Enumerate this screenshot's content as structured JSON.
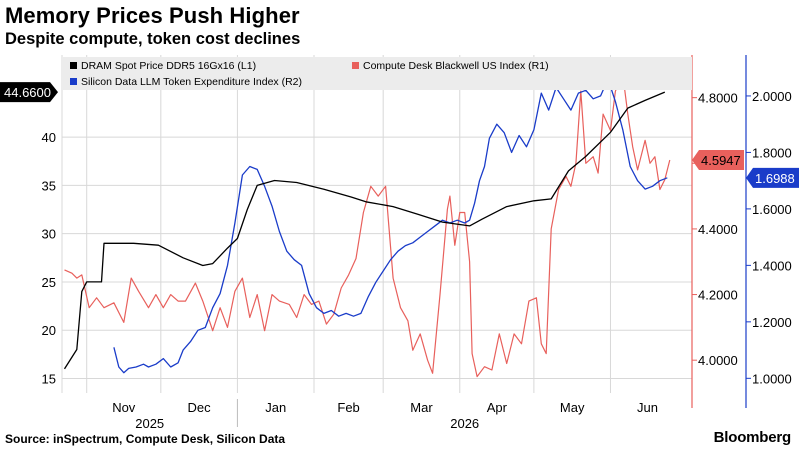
{
  "header": {
    "title": "Memory Prices Push Higher",
    "subtitle": "Despite compute, token cost declines"
  },
  "footer": {
    "source": "Source: inSpectrum, Compute Desk, Silicon Data",
    "brand": "Bloomberg"
  },
  "colors": {
    "dram": "#000000",
    "compute": "#e8605c",
    "llm": "#1a3cc9",
    "grid": "#d8d8d8",
    "legend_bg": "#ececec"
  },
  "chart_data": {
    "type": "line",
    "x_month_labels": [
      "Nov",
      "Dec",
      "Jan",
      "Feb",
      "Mar",
      "Apr",
      "May",
      "Jun"
    ],
    "x_year_labels": [
      "2025",
      "2026"
    ],
    "axes": {
      "left": {
        "ticks": [
          "15",
          "20",
          "25",
          "30",
          "35",
          "40"
        ],
        "ylim": [
          13.5,
          48.5
        ],
        "grid": true
      },
      "right1": {
        "ticks": [
          "4.0000",
          "4.2000",
          "4.4000",
          "4.6000",
          "4.8000"
        ],
        "ylim": [
          3.9,
          4.93
        ]
      },
      "right2": {
        "ticks": [
          "1.0000",
          "1.2000",
          "1.4000",
          "1.6000",
          "1.8000",
          "2.0000"
        ],
        "ylim": [
          0.948,
          2.145
        ]
      }
    },
    "series": [
      {
        "name": "DRAM Spot Price DDR5 16Gx16 (L1)",
        "axis": "left",
        "last_value_label": "44.6600",
        "points": [
          [
            "2025-10-23",
            16.0
          ],
          [
            "2025-10-28",
            18.0
          ],
          [
            "2025-10-30",
            24.0
          ],
          [
            "2025-11-01",
            25.0
          ],
          [
            "2025-11-07",
            25.0
          ],
          [
            "2025-11-08",
            29.0
          ],
          [
            "2025-11-20",
            29.0
          ],
          [
            "2025-11-30",
            28.8
          ],
          [
            "2025-12-10",
            27.5
          ],
          [
            "2025-12-18",
            26.7
          ],
          [
            "2025-12-22",
            26.9
          ],
          [
            "2025-12-28",
            28.5
          ],
          [
            "2026-01-01",
            29.5
          ],
          [
            "2026-01-05",
            32.5
          ],
          [
            "2026-01-09",
            35.0
          ],
          [
            "2026-01-16",
            35.5
          ],
          [
            "2026-01-25",
            35.3
          ],
          [
            "2026-02-05",
            34.6
          ],
          [
            "2026-02-16",
            33.8
          ],
          [
            "2026-02-22",
            33.3
          ],
          [
            "2026-03-05",
            32.8
          ],
          [
            "2026-03-15",
            32.0
          ],
          [
            "2026-03-25",
            31.2
          ],
          [
            "2026-04-05",
            30.8
          ],
          [
            "2026-04-10",
            31.5
          ],
          [
            "2026-04-20",
            32.8
          ],
          [
            "2026-05-01",
            33.4
          ],
          [
            "2026-05-08",
            33.6
          ],
          [
            "2026-05-15",
            36.5
          ],
          [
            "2026-05-22",
            38.0
          ],
          [
            "2026-06-01",
            40.5
          ],
          [
            "2026-06-08",
            43.0
          ],
          [
            "2026-06-15",
            43.8
          ],
          [
            "2026-06-23",
            44.66
          ]
        ]
      },
      {
        "name": "Compute Desk Blackwell US Index (R1)",
        "axis": "right1",
        "last_value_label": "4.5947",
        "points": [
          [
            "2025-10-23",
            4.275
          ],
          [
            "2025-10-26",
            4.265
          ],
          [
            "2025-10-28",
            4.25
          ],
          [
            "2025-10-30",
            4.26
          ],
          [
            "2025-11-02",
            4.16
          ],
          [
            "2025-11-05",
            4.19
          ],
          [
            "2025-11-08",
            4.16
          ],
          [
            "2025-11-12",
            4.175
          ],
          [
            "2025-11-16",
            4.115
          ],
          [
            "2025-11-19",
            4.25
          ],
          [
            "2025-11-22",
            4.21
          ],
          [
            "2025-11-26",
            4.16
          ],
          [
            "2025-11-29",
            4.2
          ],
          [
            "2025-12-02",
            4.16
          ],
          [
            "2025-12-05",
            4.2
          ],
          [
            "2025-12-08",
            4.18
          ],
          [
            "2025-12-11",
            4.18
          ],
          [
            "2025-12-15",
            4.235
          ],
          [
            "2025-12-18",
            4.18
          ],
          [
            "2025-12-22",
            4.09
          ],
          [
            "2025-12-25",
            4.16
          ],
          [
            "2025-12-28",
            4.1
          ],
          [
            "2025-12-31",
            4.21
          ],
          [
            "2026-01-03",
            4.25
          ],
          [
            "2026-01-06",
            4.13
          ],
          [
            "2026-01-09",
            4.2
          ],
          [
            "2026-01-12",
            4.09
          ],
          [
            "2026-01-15",
            4.2
          ],
          [
            "2026-01-18",
            4.18
          ],
          [
            "2026-01-22",
            4.17
          ],
          [
            "2026-01-25",
            4.13
          ],
          [
            "2026-01-28",
            4.2
          ],
          [
            "2026-01-31",
            4.17
          ],
          [
            "2026-02-03",
            4.18
          ],
          [
            "2026-02-06",
            4.11
          ],
          [
            "2026-02-09",
            4.14
          ],
          [
            "2026-02-12",
            4.22
          ],
          [
            "2026-02-15",
            4.26
          ],
          [
            "2026-02-18",
            4.31
          ],
          [
            "2026-02-21",
            4.45
          ],
          [
            "2026-02-24",
            4.53
          ],
          [
            "2026-02-27",
            4.5
          ],
          [
            "2026-03-02",
            4.53
          ],
          [
            "2026-03-05",
            4.25
          ],
          [
            "2026-03-08",
            4.16
          ],
          [
            "2026-03-11",
            4.12
          ],
          [
            "2026-03-13",
            4.03
          ],
          [
            "2026-03-16",
            4.08
          ],
          [
            "2026-03-19",
            4.0
          ],
          [
            "2026-03-21",
            3.96
          ],
          [
            "2026-03-24",
            4.2
          ],
          [
            "2026-03-27",
            4.46
          ],
          [
            "2026-03-28",
            4.5
          ],
          [
            "2026-03-30",
            4.35
          ],
          [
            "2026-04-01",
            4.45
          ],
          [
            "2026-04-03",
            4.45
          ],
          [
            "2026-04-05",
            4.3
          ],
          [
            "2026-04-06",
            4.02
          ],
          [
            "2026-04-08",
            3.95
          ],
          [
            "2026-04-11",
            3.98
          ],
          [
            "2026-04-14",
            3.97
          ],
          [
            "2026-04-17",
            4.08
          ],
          [
            "2026-04-20",
            3.99
          ],
          [
            "2026-04-23",
            4.08
          ],
          [
            "2026-04-26",
            4.05
          ],
          [
            "2026-04-29",
            4.18
          ],
          [
            "2026-05-02",
            4.19
          ],
          [
            "2026-05-04",
            4.05
          ],
          [
            "2026-05-06",
            4.02
          ],
          [
            "2026-05-08",
            4.4
          ],
          [
            "2026-05-11",
            4.52
          ],
          [
            "2026-05-14",
            4.56
          ],
          [
            "2026-05-16",
            4.53
          ],
          [
            "2026-05-18",
            4.6
          ],
          [
            "2026-05-20",
            4.82
          ],
          [
            "2026-05-22",
            4.6
          ],
          [
            "2026-05-25",
            4.62
          ],
          [
            "2026-05-27",
            4.57
          ],
          [
            "2026-05-29",
            4.75
          ],
          [
            "2026-06-01",
            4.7
          ],
          [
            "2026-06-03",
            4.82
          ],
          [
            "2026-06-06",
            4.87
          ],
          [
            "2026-06-08",
            4.75
          ],
          [
            "2026-06-10",
            4.65
          ],
          [
            "2026-06-12",
            4.58
          ],
          [
            "2026-06-15",
            4.67
          ],
          [
            "2026-06-17",
            4.6
          ],
          [
            "2026-06-19",
            4.62
          ],
          [
            "2026-06-21",
            4.52
          ],
          [
            "2026-06-23",
            4.55
          ],
          [
            "2026-06-25",
            4.61
          ]
        ]
      },
      {
        "name": "Silicon Data LLM Token Expenditure Index (R2)",
        "axis": "right2",
        "last_value_label": "1.6988",
        "points": [
          [
            "2025-11-12",
            1.11
          ],
          [
            "2025-11-14",
            1.04
          ],
          [
            "2025-11-16",
            1.02
          ],
          [
            "2025-11-18",
            1.035
          ],
          [
            "2025-11-21",
            1.04
          ],
          [
            "2025-11-24",
            1.05
          ],
          [
            "2025-11-26",
            1.04
          ],
          [
            "2025-11-29",
            1.05
          ],
          [
            "2025-12-02",
            1.07
          ],
          [
            "2025-12-05",
            1.04
          ],
          [
            "2025-12-08",
            1.055
          ],
          [
            "2025-12-10",
            1.1
          ],
          [
            "2025-12-13",
            1.13
          ],
          [
            "2025-12-16",
            1.17
          ],
          [
            "2025-12-19",
            1.18
          ],
          [
            "2025-12-22",
            1.25
          ],
          [
            "2025-12-25",
            1.3
          ],
          [
            "2025-12-28",
            1.4
          ],
          [
            "2025-12-31",
            1.55
          ],
          [
            "2026-01-03",
            1.72
          ],
          [
            "2026-01-06",
            1.75
          ],
          [
            "2026-01-09",
            1.74
          ],
          [
            "2026-01-12",
            1.68
          ],
          [
            "2026-01-15",
            1.61
          ],
          [
            "2026-01-18",
            1.52
          ],
          [
            "2026-01-21",
            1.45
          ],
          [
            "2026-01-24",
            1.42
          ],
          [
            "2026-01-27",
            1.4
          ],
          [
            "2026-01-30",
            1.3
          ],
          [
            "2026-02-02",
            1.25
          ],
          [
            "2026-02-05",
            1.23
          ],
          [
            "2026-02-08",
            1.24
          ],
          [
            "2026-02-11",
            1.22
          ],
          [
            "2026-02-14",
            1.23
          ],
          [
            "2026-02-17",
            1.22
          ],
          [
            "2026-02-20",
            1.23
          ],
          [
            "2026-02-23",
            1.29
          ],
          [
            "2026-02-26",
            1.34
          ],
          [
            "2026-03-01",
            1.38
          ],
          [
            "2026-03-04",
            1.42
          ],
          [
            "2026-03-07",
            1.45
          ],
          [
            "2026-03-10",
            1.47
          ],
          [
            "2026-03-13",
            1.48
          ],
          [
            "2026-03-16",
            1.5
          ],
          [
            "2026-03-19",
            1.52
          ],
          [
            "2026-03-22",
            1.54
          ],
          [
            "2026-03-25",
            1.56
          ],
          [
            "2026-03-28",
            1.55
          ],
          [
            "2026-03-31",
            1.56
          ],
          [
            "2026-04-03",
            1.55
          ],
          [
            "2026-04-05",
            1.56
          ],
          [
            "2026-04-07",
            1.62
          ],
          [
            "2026-04-09",
            1.7
          ],
          [
            "2026-04-11",
            1.75
          ],
          [
            "2026-04-13",
            1.85
          ],
          [
            "2026-04-16",
            1.9
          ],
          [
            "2026-04-19",
            1.87
          ],
          [
            "2026-04-22",
            1.8
          ],
          [
            "2026-04-25",
            1.86
          ],
          [
            "2026-04-28",
            1.82
          ],
          [
            "2026-05-01",
            1.88
          ],
          [
            "2026-05-04",
            2.01
          ],
          [
            "2026-05-07",
            1.95
          ],
          [
            "2026-05-10",
            2.03
          ],
          [
            "2026-05-13",
            1.99
          ],
          [
            "2026-05-16",
            1.95
          ],
          [
            "2026-05-19",
            2.01
          ],
          [
            "2026-05-22",
            2.02
          ],
          [
            "2026-05-25",
            1.99
          ],
          [
            "2026-05-28",
            2.0
          ],
          [
            "2026-05-31",
            2.06
          ],
          [
            "2026-06-03",
            1.98
          ],
          [
            "2026-06-06",
            1.88
          ],
          [
            "2026-06-09",
            1.75
          ],
          [
            "2026-06-12",
            1.7
          ],
          [
            "2026-06-15",
            1.67
          ],
          [
            "2026-06-18",
            1.68
          ],
          [
            "2026-06-21",
            1.7
          ],
          [
            "2026-06-24",
            1.71
          ]
        ]
      }
    ]
  }
}
